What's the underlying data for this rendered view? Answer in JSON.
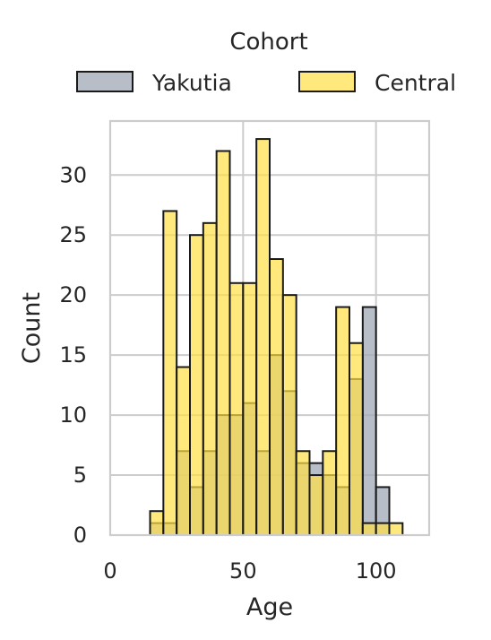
{
  "chart_data": {
    "type": "bar",
    "subtype": "overlaid-histogram",
    "title": "",
    "xlabel": "Age",
    "ylabel": "Count",
    "xlim": [
      0,
      120
    ],
    "ylim": [
      0,
      34.5
    ],
    "xticks": [
      0,
      50,
      100
    ],
    "yticks": [
      0,
      5,
      10,
      15,
      20,
      25,
      30
    ],
    "grid": true,
    "legend": {
      "title": "Cohort",
      "placement": "top-center"
    },
    "bin_width": 5,
    "bin_edges": [
      15,
      20,
      25,
      30,
      35,
      40,
      45,
      50,
      55,
      60,
      65,
      70,
      75,
      80,
      85,
      90,
      95,
      100,
      105
    ],
    "series": [
      {
        "name": "Yakutia",
        "color": "#a3acb9",
        "values": [
          1,
          1,
          7,
          4,
          7,
          10,
          10,
          11,
          7,
          15,
          12,
          6,
          6,
          5,
          4,
          13,
          19,
          4,
          0
        ]
      },
      {
        "name": "Central",
        "color": "#ffe045",
        "values": [
          2,
          27,
          14,
          25,
          26,
          32,
          21,
          21,
          33,
          23,
          20,
          7,
          5,
          7,
          19,
          16,
          1,
          1,
          1
        ]
      }
    ]
  }
}
